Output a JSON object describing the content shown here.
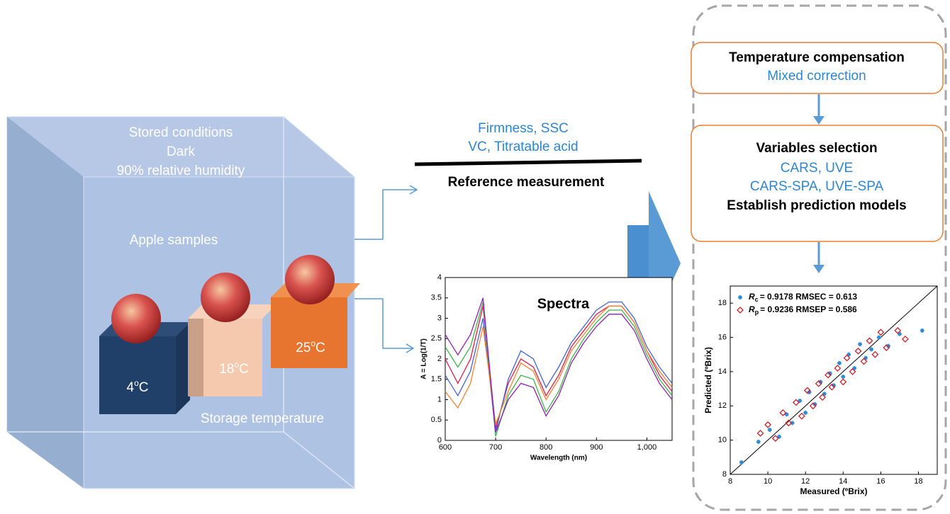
{
  "storage": {
    "conditions": [
      "Stored conditions",
      "Dark",
      "90% relative humidity"
    ],
    "samples": "Apple samples",
    "temperatures": [
      {
        "value": "4",
        "degree": "o",
        "unit": "C"
      },
      {
        "value": "18",
        "degree": "o",
        "unit": "C"
      },
      {
        "value": "25",
        "degree": "o",
        "unit": "C"
      }
    ],
    "footer": "Storage temperature"
  },
  "reference": {
    "items": [
      "Firmness, SSC",
      "VC, Titratable acid"
    ],
    "title": "Reference measurement"
  },
  "spectra": {
    "type": "line",
    "title": "Spectra",
    "x_label": "Wavelength (nm)",
    "y_label": "A = Log(1/T)",
    "xlim": [
      600,
      1050
    ],
    "xticks": [
      600,
      700,
      800,
      900,
      {
        "value": 1000,
        "label": "1,000"
      }
    ],
    "ylim": [
      0,
      4
    ],
    "yticks": [
      0,
      0.5,
      1,
      1.5,
      2,
      2.5,
      3,
      3.5,
      4
    ],
    "x": [
      600,
      625,
      650,
      675,
      700,
      725,
      750,
      775,
      800,
      825,
      850,
      875,
      900,
      925,
      950,
      975,
      1000,
      1025,
      1050
    ],
    "series": [
      {
        "color": "#e6194b",
        "values": [
          2.0,
          1.4,
          2.0,
          3.3,
          0.3,
          1.4,
          2.0,
          1.8,
          1.1,
          1.6,
          2.3,
          2.7,
          3.1,
          3.3,
          3.3,
          2.9,
          2.2,
          1.6,
          1.2
        ]
      },
      {
        "color": "#3cb44b",
        "values": [
          2.3,
          1.8,
          2.3,
          3.4,
          0.1,
          1.1,
          1.6,
          1.5,
          0.7,
          1.2,
          2.0,
          2.5,
          2.9,
          3.2,
          3.2,
          2.8,
          2.1,
          1.5,
          1.1
        ]
      },
      {
        "color": "#4363d8",
        "values": [
          1.6,
          1.1,
          1.7,
          3.0,
          0.2,
          1.5,
          2.2,
          2.0,
          1.3,
          1.8,
          2.4,
          2.8,
          3.2,
          3.4,
          3.4,
          3.0,
          2.3,
          1.8,
          1.4
        ]
      },
      {
        "color": "#f58231",
        "values": [
          1.2,
          0.8,
          1.4,
          2.8,
          0.4,
          1.2,
          1.9,
          1.7,
          1.0,
          1.5,
          2.2,
          2.6,
          3.0,
          3.3,
          3.3,
          2.9,
          2.2,
          1.7,
          1.3
        ]
      },
      {
        "color": "#911eb4",
        "values": [
          2.6,
          2.1,
          2.6,
          3.5,
          0.2,
          1.0,
          1.4,
          1.3,
          0.6,
          1.1,
          1.9,
          2.4,
          2.8,
          3.1,
          3.1,
          2.7,
          2.0,
          1.4,
          1.0
        ]
      }
    ]
  },
  "steps": [
    {
      "title": "Temperature compensation",
      "items": [
        "Mixed correction"
      ]
    },
    {
      "title": "Variables selection",
      "items": [
        "CARS, UVE",
        "CARS-SPA, UVE-SPA"
      ],
      "footer": "Establish  prediction models"
    }
  ],
  "scatter": {
    "type": "scatter",
    "x_label": "Measured (ºBrix)",
    "y_label": "Predicted (ºBrix)",
    "xlim": [
      8,
      19
    ],
    "xticks": [
      8,
      10,
      12,
      14,
      16,
      18
    ],
    "ylim": [
      8,
      19
    ],
    "yticks": [
      8,
      10,
      12,
      14,
      16,
      18
    ],
    "series": [
      {
        "symbol": "R",
        "subscript": "c",
        "stats": "= 0.9178   RMSEC = 0.613",
        "color": "#2e8bd8",
        "marker": "star",
        "x": [
          8.6,
          9.5,
          10.1,
          10.6,
          11.0,
          11.3,
          11.7,
          12.0,
          12.2,
          12.5,
          12.8,
          13.0,
          13.3,
          13.5,
          13.8,
          14.0,
          14.3,
          14.6,
          14.9,
          15.2,
          15.5,
          15.9,
          16.4,
          17.0,
          18.2
        ],
        "values": [
          8.7,
          9.9,
          10.6,
          10.2,
          11.5,
          11.0,
          12.3,
          11.6,
          12.8,
          12.1,
          13.4,
          12.7,
          13.9,
          13.2,
          14.5,
          13.7,
          15.0,
          14.2,
          15.6,
          14.8,
          15.3,
          16.0,
          15.5,
          16.2,
          16.4
        ]
      },
      {
        "symbol": "R",
        "subscript": "p",
        "stats": "= 0.9236   RMSEP = 0.586",
        "color": "#d0202a",
        "marker": "diamond",
        "x": [
          9.6,
          10.0,
          10.4,
          10.8,
          11.1,
          11.5,
          11.8,
          12.1,
          12.4,
          12.7,
          12.9,
          13.2,
          13.4,
          13.7,
          14.0,
          14.2,
          14.5,
          14.8,
          15.1,
          15.4,
          15.7,
          16.0,
          16.3,
          16.9,
          17.3
        ],
        "values": [
          10.4,
          10.9,
          10.1,
          11.6,
          11.0,
          12.2,
          11.4,
          12.9,
          12.0,
          13.3,
          12.5,
          13.8,
          13.1,
          14.2,
          13.4,
          14.8,
          14.0,
          15.2,
          14.6,
          15.8,
          15.0,
          16.3,
          15.4,
          16.4,
          15.9
        ]
      }
    ]
  }
}
